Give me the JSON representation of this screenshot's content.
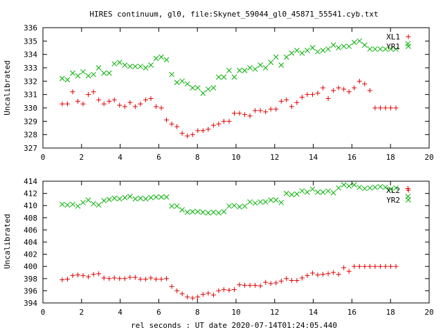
{
  "title": "HIRES continuum, gl0, file:Skynet_59044_gl0_45871_55541.cyb.txt",
  "xlabel": "rel seconds : UT date 2020-07-14T01:24:05.440",
  "colors": {
    "red": "#e00000",
    "green": "#00b000"
  },
  "chart_data": [
    {
      "type": "scatter",
      "ylabel": "Uncalibrated",
      "xlim": [
        0,
        20
      ],
      "ylim": [
        327,
        336
      ],
      "xticks": [
        0,
        2,
        4,
        6,
        8,
        10,
        12,
        14,
        16,
        18,
        20
      ],
      "yticks": [
        327,
        328,
        329,
        330,
        331,
        332,
        333,
        334,
        335,
        336
      ],
      "legend_position": "top-right",
      "series": [
        {
          "name": "XL1",
          "marker": "plus",
          "color": "#e00000",
          "x": [
            1.0,
            1.27,
            1.54,
            1.81,
            2.08,
            2.35,
            2.62,
            2.89,
            3.16,
            3.43,
            3.7,
            3.97,
            4.24,
            4.51,
            4.78,
            5.05,
            5.32,
            5.59,
            5.86,
            6.13,
            6.4,
            6.67,
            6.94,
            7.21,
            7.48,
            7.75,
            8.02,
            8.29,
            8.56,
            8.83,
            9.1,
            9.37,
            9.64,
            9.91,
            10.18,
            10.45,
            10.72,
            10.99,
            11.26,
            11.53,
            11.8,
            12.07,
            12.34,
            12.61,
            12.88,
            13.15,
            13.42,
            13.69,
            13.96,
            14.23,
            14.5,
            14.77,
            15.04,
            15.31,
            15.58,
            15.85,
            16.12,
            16.39,
            16.66,
            16.93,
            17.2,
            17.47,
            17.74,
            18.01,
            18.28
          ],
          "y": [
            330.3,
            330.3,
            331.2,
            330.5,
            330.3,
            331.0,
            331.2,
            330.6,
            330.3,
            330.5,
            330.6,
            330.2,
            330.1,
            330.4,
            330.1,
            330.3,
            330.6,
            330.7,
            330.1,
            330.0,
            329.1,
            328.8,
            328.6,
            328.1,
            327.9,
            328.0,
            328.3,
            328.3,
            328.4,
            328.7,
            328.8,
            329.0,
            329.0,
            329.6,
            329.6,
            329.5,
            329.4,
            329.8,
            329.8,
            329.7,
            329.9,
            329.9,
            330.5,
            330.6,
            330.1,
            330.4,
            330.8,
            331.0,
            331.0,
            331.1,
            331.5,
            330.7,
            331.3,
            331.5,
            331.4,
            331.2,
            331.5,
            332.0,
            331.8,
            331.3,
            330.0,
            330.0,
            330.0,
            330.0,
            330.0
          ]
        },
        {
          "name": "YR1",
          "marker": "cross",
          "color": "#00b000",
          "x": [
            1.0,
            1.27,
            1.54,
            1.81,
            2.08,
            2.35,
            2.62,
            2.89,
            3.16,
            3.43,
            3.7,
            3.97,
            4.24,
            4.51,
            4.78,
            5.05,
            5.32,
            5.59,
            5.86,
            6.13,
            6.4,
            6.67,
            6.94,
            7.21,
            7.48,
            7.75,
            8.02,
            8.29,
            8.56,
            8.83,
            9.1,
            9.37,
            9.64,
            9.91,
            10.18,
            10.45,
            10.72,
            10.99,
            11.26,
            11.53,
            11.8,
            12.07,
            12.34,
            12.61,
            12.88,
            13.15,
            13.42,
            13.69,
            13.96,
            14.23,
            14.5,
            14.77,
            15.04,
            15.31,
            15.58,
            15.85,
            16.12,
            16.39,
            16.66,
            16.93,
            17.2,
            17.47,
            17.74,
            18.01,
            18.28,
            18.9
          ],
          "y": [
            332.2,
            332.1,
            332.6,
            332.4,
            332.7,
            332.4,
            332.5,
            333.0,
            332.6,
            332.6,
            333.3,
            333.4,
            333.2,
            333.1,
            333.1,
            333.1,
            333.0,
            333.2,
            333.7,
            333.8,
            333.6,
            332.5,
            331.9,
            332.0,
            331.8,
            331.5,
            331.5,
            331.1,
            331.4,
            331.5,
            332.3,
            332.3,
            332.8,
            332.3,
            332.8,
            332.8,
            333.0,
            332.9,
            333.2,
            333.0,
            333.4,
            333.8,
            333.2,
            333.8,
            334.1,
            334.3,
            334.1,
            334.3,
            334.5,
            334.2,
            334.3,
            334.4,
            334.7,
            334.5,
            334.6,
            334.6,
            334.9,
            335.0,
            334.7,
            334.4,
            334.4,
            334.4,
            334.4,
            334.4,
            334.4,
            334.8
          ]
        }
      ]
    },
    {
      "type": "scatter",
      "ylabel": "Uncalibrated",
      "xlim": [
        0,
        20
      ],
      "ylim": [
        394,
        414
      ],
      "xticks": [
        0,
        2,
        4,
        6,
        8,
        10,
        12,
        14,
        16,
        18,
        20
      ],
      "yticks": [
        394,
        396,
        398,
        400,
        402,
        404,
        406,
        408,
        410,
        412,
        414
      ],
      "legend_position": "top-right",
      "series": [
        {
          "name": "XL2",
          "marker": "plus",
          "color": "#e00000",
          "x": [
            1.0,
            1.27,
            1.54,
            1.81,
            2.08,
            2.35,
            2.62,
            2.89,
            3.16,
            3.43,
            3.7,
            3.97,
            4.24,
            4.51,
            4.78,
            5.05,
            5.32,
            5.59,
            5.86,
            6.13,
            6.4,
            6.67,
            6.94,
            7.21,
            7.48,
            7.75,
            8.02,
            8.29,
            8.56,
            8.83,
            9.1,
            9.37,
            9.64,
            9.91,
            10.18,
            10.45,
            10.72,
            10.99,
            11.26,
            11.53,
            11.8,
            12.07,
            12.34,
            12.61,
            12.88,
            13.15,
            13.42,
            13.69,
            13.96,
            14.23,
            14.5,
            14.77,
            15.04,
            15.31,
            15.58,
            15.85,
            16.12,
            16.39,
            16.66,
            16.93,
            17.2,
            17.47,
            17.74,
            18.01,
            18.28,
            18.9
          ],
          "y": [
            397.8,
            397.9,
            398.5,
            398.6,
            398.5,
            398.3,
            398.7,
            398.8,
            398.1,
            398.0,
            398.1,
            398.0,
            398.0,
            398.2,
            398.2,
            397.9,
            397.9,
            398.1,
            397.9,
            397.9,
            398.0,
            396.7,
            396.0,
            395.5,
            395.0,
            394.8,
            395.0,
            395.4,
            395.6,
            395.3,
            396.0,
            396.2,
            396.1,
            396.2,
            397.0,
            396.9,
            396.9,
            396.9,
            396.8,
            397.4,
            397.2,
            397.3,
            397.6,
            398.0,
            397.7,
            397.7,
            398.1,
            398.5,
            398.9,
            398.6,
            398.7,
            398.8,
            399.0,
            398.7,
            399.8,
            399.2,
            400.0,
            400.0,
            400.0,
            400.0,
            400.0,
            400.0,
            400.0,
            400.0,
            400.0,
            412.8
          ]
        },
        {
          "name": "YR2",
          "marker": "cross",
          "color": "#00b000",
          "x": [
            1.0,
            1.27,
            1.54,
            1.81,
            2.08,
            2.35,
            2.62,
            2.89,
            3.16,
            3.43,
            3.7,
            3.97,
            4.24,
            4.51,
            4.78,
            5.05,
            5.32,
            5.59,
            5.86,
            6.13,
            6.4,
            6.67,
            6.94,
            7.21,
            7.48,
            7.75,
            8.02,
            8.29,
            8.56,
            8.83,
            9.1,
            9.37,
            9.64,
            9.91,
            10.18,
            10.45,
            10.72,
            10.99,
            11.26,
            11.53,
            11.8,
            12.07,
            12.34,
            12.61,
            12.88,
            13.15,
            13.42,
            13.69,
            13.96,
            14.23,
            14.5,
            14.77,
            15.04,
            15.31,
            15.58,
            15.85,
            16.12,
            16.39,
            16.66,
            16.93,
            17.2,
            17.47,
            17.74,
            18.01,
            18.28,
            18.9
          ],
          "y": [
            410.2,
            410.1,
            410.2,
            409.9,
            410.5,
            410.9,
            410.3,
            410.1,
            410.8,
            411.0,
            411.2,
            411.1,
            411.3,
            411.5,
            411.1,
            411.2,
            411.1,
            411.3,
            411.4,
            411.4,
            411.4,
            409.9,
            409.9,
            409.3,
            408.9,
            409.0,
            409.0,
            408.9,
            408.8,
            408.9,
            408.8,
            409.0,
            409.9,
            410.0,
            409.8,
            409.9,
            410.6,
            410.4,
            410.6,
            410.6,
            410.9,
            410.9,
            410.5,
            412.0,
            411.8,
            411.9,
            412.4,
            412.2,
            412.7,
            412.2,
            412.2,
            412.4,
            412.1,
            412.9,
            413.4,
            413.2,
            413.4,
            413.0,
            412.8,
            412.9,
            413.0,
            413.1,
            413.0,
            412.7,
            412.9,
            411.5
          ]
        }
      ]
    }
  ]
}
